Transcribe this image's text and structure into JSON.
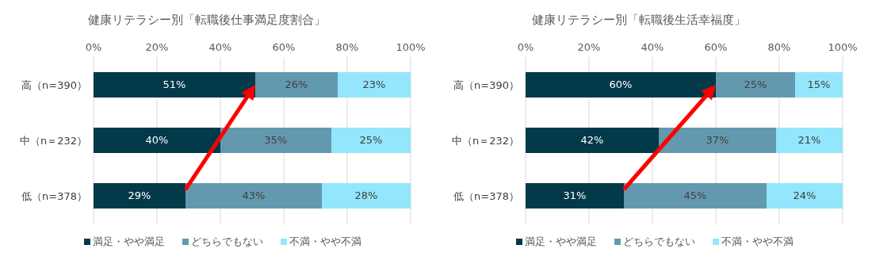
{
  "chart_data": [
    {
      "type": "bar",
      "orientation": "horizontal",
      "stacked": true,
      "title": "健康リテラシー別「転職後仕事満足度割合」",
      "categories": [
        "高（n=390）",
        "中（n＝232）",
        "低（n=378）"
      ],
      "series": [
        {
          "name": "満足・やや満足",
          "color": "#023a4a",
          "values": [
            51,
            40,
            29
          ],
          "value_labels": [
            "51%",
            "40%",
            "29%"
          ]
        },
        {
          "name": "どちらでもない",
          "color": "#6399af",
          "values": [
            26,
            35,
            43
          ],
          "value_labels": [
            "26%",
            "35%",
            "43%"
          ]
        },
        {
          "name": "不満・やや不満",
          "color": "#93e6fb",
          "values": [
            23,
            25,
            28
          ],
          "value_labels": [
            "23%",
            "25%",
            "28%"
          ]
        }
      ],
      "xlim": [
        0,
        100
      ],
      "xticks": [
        {
          "value": 0,
          "label": "0%"
        },
        {
          "value": 20,
          "label": "20%"
        },
        {
          "value": 40,
          "label": "40%"
        },
        {
          "value": 60,
          "label": "60%"
        },
        {
          "value": 80,
          "label": "80%"
        },
        {
          "value": 100,
          "label": "100%"
        }
      ],
      "grid": "x",
      "legend": "bottom"
    },
    {
      "type": "bar",
      "orientation": "horizontal",
      "stacked": true,
      "title": "健康リテラシー別「転職後生活幸福度」",
      "categories": [
        "高（n=390）",
        "中（n＝232）",
        "低（n=378）"
      ],
      "series": [
        {
          "name": "満足・やや満足",
          "color": "#023a4a",
          "values": [
            60,
            42,
            31
          ],
          "value_labels": [
            "60%",
            "42%",
            "31%"
          ]
        },
        {
          "name": "どちらでもない",
          "color": "#6399af",
          "values": [
            25,
            37,
            45
          ],
          "value_labels": [
            "25%",
            "37%",
            "45%"
          ]
        },
        {
          "name": "不満・やや不満",
          "color": "#93e6fb",
          "values": [
            15,
            21,
            24
          ],
          "value_labels": [
            "15%",
            "21%",
            "24%"
          ]
        }
      ],
      "xlim": [
        0,
        100
      ],
      "xticks": [
        {
          "value": 0,
          "label": "0%"
        },
        {
          "value": 20,
          "label": "20%"
        },
        {
          "value": 40,
          "label": "40%"
        },
        {
          "value": 60,
          "label": "60%"
        },
        {
          "value": 80,
          "label": "80%"
        },
        {
          "value": 100,
          "label": "100%"
        }
      ],
      "grid": "x",
      "legend": "bottom"
    }
  ]
}
